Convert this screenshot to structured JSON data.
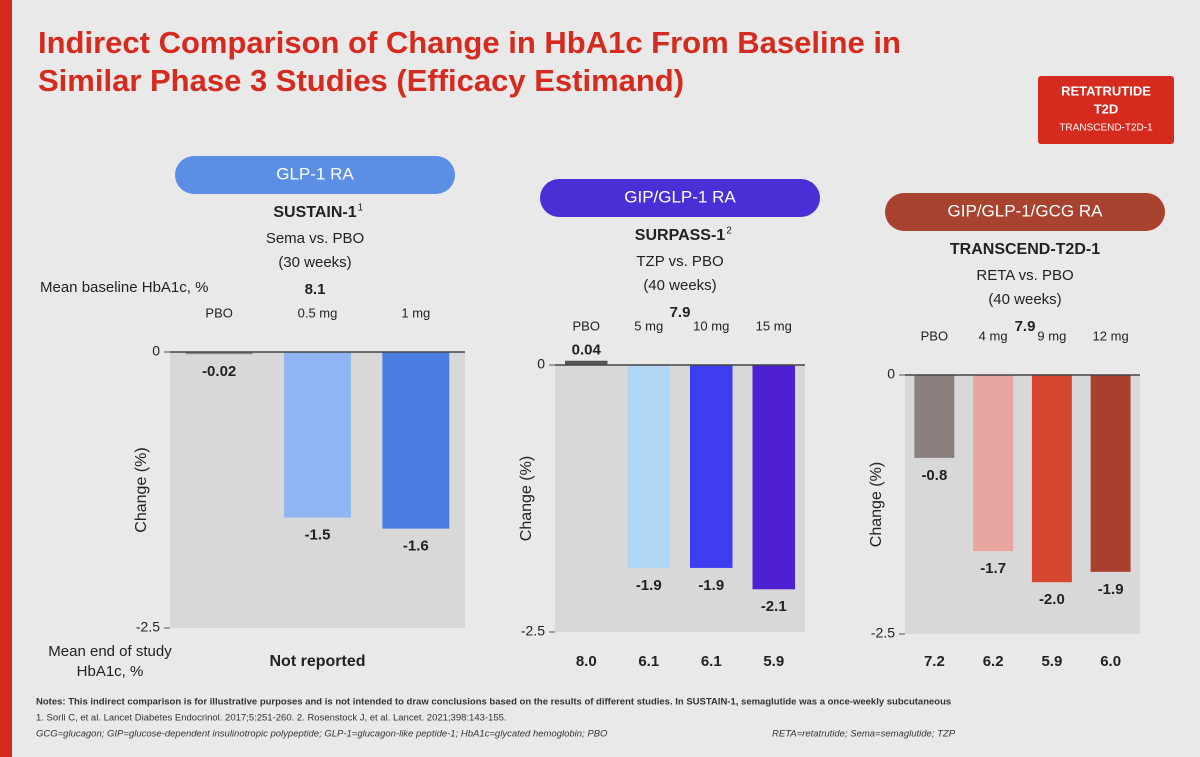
{
  "title_lines": [
    "Indirect Comparison of Change in HbA1c From Baseline in",
    "Similar Phase 3 Studies (Efficacy Estimand)"
  ],
  "badge": [
    "RETATRUTIDE",
    "T2D",
    "TRANSCEND-T2D-1"
  ],
  "row_labels": {
    "baseline": "Mean baseline HbA1c, %",
    "end": [
      "Mean end of study",
      "HbA1c, %"
    ]
  },
  "chart_data": [
    {
      "type": "bar",
      "header": "GLP-1 RA",
      "header_color": "#5b8fe6",
      "study": "SUSTAIN-1",
      "superscript": "1",
      "comparison": "Sema vs. PBO",
      "duration": "(30 weeks)",
      "baseline": 8.1,
      "categories": [
        "PBO",
        "0.5 mg",
        "1 mg"
      ],
      "values": [
        -0.02,
        -1.5,
        -1.6
      ],
      "colors": [
        "#8a8a8a",
        "#8fb6f2",
        "#4a7ce2"
      ],
      "ylabel": "Change (%)",
      "ylim": [
        -2.5,
        0
      ],
      "yticks": [
        0,
        -2.5
      ],
      "end_of_study": "Not reported"
    },
    {
      "type": "bar",
      "header": "GIP/GLP-1 RA",
      "header_color": "#4a2fd6",
      "study": "SURPASS-1",
      "superscript": "2",
      "comparison": "TZP vs. PBO",
      "duration": "(40 weeks)",
      "baseline": 7.9,
      "categories": [
        "PBO",
        "5 mg",
        "10 mg",
        "15 mg"
      ],
      "values": [
        0.04,
        -1.9,
        -1.9,
        -2.1
      ],
      "colors": [
        "#555555",
        "#b2d6f5",
        "#3d3ef0",
        "#4f20d2"
      ],
      "ylabel": "Change (%)",
      "ylim": [
        -2.5,
        0
      ],
      "yticks": [
        0,
        -2.5
      ],
      "end_of_study": [
        "8.0",
        "6.1",
        "6.1",
        "5.9"
      ]
    },
    {
      "type": "bar",
      "header": "GIP/GLP-1/GCG RA",
      "header_color": "#a8432f",
      "study": "TRANSCEND-T2D-1",
      "comparison": "RETA vs. PBO",
      "duration": "(40 weeks)",
      "baseline": 7.9,
      "categories": [
        "PBO",
        "4 mg",
        "9 mg",
        "12 mg"
      ],
      "values": [
        -0.8,
        -1.7,
        -2.0,
        -1.9
      ],
      "value_labels": [
        "-0.8",
        "-1.7",
        "-2.0",
        "-1.9"
      ],
      "colors": [
        "#8a807e",
        "#e8a69e",
        "#d4462e",
        "#a8402d"
      ],
      "ylabel": "Change (%)",
      "ylim": [
        -2.5,
        0
      ],
      "yticks": [
        0,
        -2.5
      ],
      "end_of_study": [
        "7.2",
        "6.2",
        "5.9",
        "6.0"
      ]
    }
  ],
  "notes": [
    "Notes: This indirect comparison is for illustrative purposes and is not intended to draw conclusions based on the results of different studies. In SUSTAIN-1, semaglutide was a once-weekly subcutaneous",
    "1. Sorli C, et al. Lancet Diabetes Endocrinol. 2017;5:251-260. 2. Rosenstock J, et al. Lancet. 2021;398:143-155.",
    "GCG=glucagon; GIP=glucose-dependent insulinotropic polypeptide; GLP-1=glucagon-like peptide-1; HbA1c=glycated hemoglobin; PBO",
    "RETA=retatrutide; Sema=semaglutide; TZP"
  ]
}
